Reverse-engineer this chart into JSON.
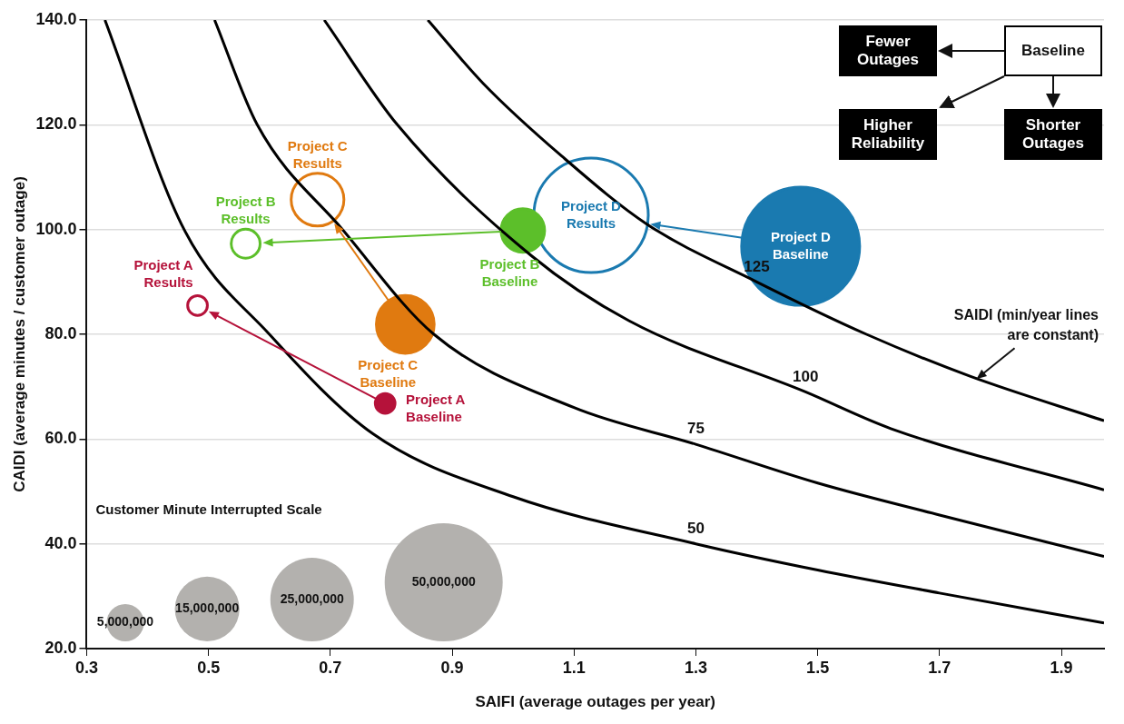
{
  "chart_data": [
    {
      "type": "bubble",
      "xlabel": "SAIFI (average outages per year)",
      "ylabel": "CAIDI (average minutes / customer outage)",
      "xlim": [
        0.3,
        1.97
      ],
      "xticks": [
        0.3,
        0.5,
        0.7,
        0.9,
        1.1,
        1.3,
        1.5,
        1.7,
        1.9
      ],
      "ylim": [
        20,
        140
      ],
      "yticks": [
        {
          "value": 20,
          "label": "20.0"
        },
        {
          "value": 40,
          "label": "40.0"
        },
        {
          "value": 60,
          "label": "60.0"
        },
        {
          "value": 80,
          "label": "80.0"
        },
        {
          "value": 100,
          "label": "100.0"
        },
        {
          "value": 120,
          "label": "120.0"
        },
        {
          "value": 140,
          "label": "140.0"
        }
      ],
      "grid": "y",
      "legend_title": "Customer Minute Interrupted Scale",
      "size_legend": [
        {
          "value": 5000000,
          "label": "5,000,000"
        },
        {
          "value": 15000000,
          "label": "15,000,000"
        },
        {
          "value": 25000000,
          "label": "25,000,000"
        },
        {
          "value": 50000000,
          "label": "50,000,000"
        }
      ],
      "series": [
        {
          "type": "line",
          "name": "50",
          "color": "#000000",
          "x": [
            0.33,
            0.46,
            0.6,
            0.77,
            1.0,
            1.3,
            1.5,
            1.7,
            1.97
          ],
          "values": [
            140,
            100,
            80,
            61,
            49,
            40,
            35,
            30.6,
            24.9
          ]
        },
        {
          "type": "line",
          "name": "75",
          "color": "#000000",
          "x": [
            0.51,
            0.58,
            0.72,
            0.87,
            1.1,
            1.3,
            1.5,
            1.7,
            1.97
          ],
          "values": [
            140,
            120,
            100,
            80,
            66,
            59,
            51.6,
            45.5,
            37.6
          ]
        },
        {
          "type": "line",
          "name": "100",
          "color": "#000000",
          "x": [
            0.69,
            0.81,
            1.03,
            1.19,
            1.48,
            1.62,
            1.97
          ],
          "values": [
            140,
            120,
            95,
            82.6,
            69,
            62,
            50.3
          ]
        },
        {
          "type": "line",
          "name": "125",
          "color": "#000000",
          "x": [
            0.86,
            0.95,
            1.08,
            1.22,
            1.4,
            1.58,
            1.75,
            1.97
          ],
          "values": [
            140,
            128,
            114,
            101,
            90,
            80,
            72,
            63.5
          ]
        },
        {
          "type": "bubble",
          "color": "#b5123a",
          "colors": [
            "#b5123a",
            "#ffffff"
          ],
          "x": [
            0.79,
            0.482
          ],
          "values": [
            66.8,
            85.5
          ],
          "sizes": [
            1400000,
            1400000
          ],
          "value_labels": [
            "Project A Baseline",
            "Project A Results"
          ]
        },
        {
          "type": "bubble",
          "color": "#5cbf2a",
          "colors": [
            "#5cbf2a",
            "#ffffff"
          ],
          "x": [
            1.016,
            0.561
          ],
          "values": [
            99.8,
            97.3
          ],
          "sizes": [
            6800000,
            3000000
          ],
          "value_labels": [
            "Project B Baseline",
            "Project B Results"
          ]
        },
        {
          "type": "bubble",
          "color": "#e07a10",
          "colors": [
            "#e07a10",
            "#ffffff"
          ],
          "x": [
            0.823,
            0.679
          ],
          "values": [
            81.9,
            105.7
          ],
          "sizes": [
            12000000,
            10000000
          ],
          "value_labels": [
            "Project C Baseline",
            "Project C Results"
          ]
        },
        {
          "type": "bubble",
          "color": "#1a7ab0",
          "colors": [
            "#1a7ab0",
            "#ffffff"
          ],
          "x": [
            1.472,
            1.128
          ],
          "values": [
            96.8,
            102.7
          ],
          "sizes": [
            50000000,
            47000000
          ],
          "value_labels": [
            "Project D Baseline",
            "Project D Results"
          ]
        }
      ],
      "annotations": [
        "SAIDI (min/year lines are constant)"
      ]
    },
    {
      "type": "other",
      "annotations": [
        "Fewer Outages",
        "Baseline",
        "Higher Reliability",
        "Shorter Outages"
      ]
    }
  ]
}
